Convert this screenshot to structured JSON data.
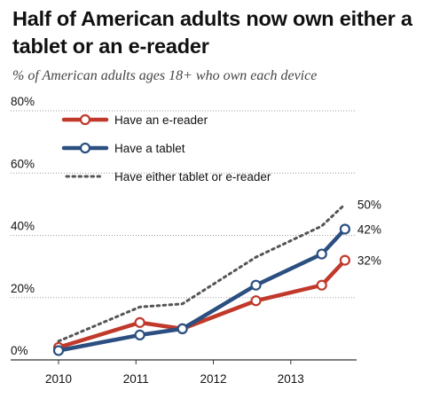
{
  "title": "Half of American adults now own either a tablet or an e-reader",
  "subtitle": "% of American adults ages 18+ who own each device",
  "colors": {
    "ereader": "#c0392b",
    "tablet": "#2a4f80",
    "either": "#555555",
    "grid": "#9a9a9a",
    "axis": "#333333"
  },
  "chart_data": {
    "type": "line",
    "title": "Half of American adults now own either a tablet or an e-reader",
    "subtitle": "% of American adults ages 18+ who own each device",
    "xlabel": "",
    "ylabel": "",
    "xlim": [
      2010.0,
      2013.85
    ],
    "ylim": [
      0,
      80
    ],
    "x_ticks": [
      2010,
      2011,
      2012,
      2013
    ],
    "x_tick_labels": [
      "2010",
      "2011",
      "2012",
      "2013"
    ],
    "y_ticks": [
      0,
      20,
      40,
      60,
      80
    ],
    "y_tick_labels": [
      "0%",
      "20%",
      "40%",
      "60%",
      "80%"
    ],
    "grid": "horizontal dotted",
    "legend_position": "top-left",
    "series": [
      {
        "name": "Have an e-reader",
        "color": "#c0392b",
        "style": "solid",
        "markers": true,
        "x": [
          2010.0,
          2011.05,
          2011.6,
          2012.55,
          2013.4,
          2013.7
        ],
        "values": [
          4,
          12,
          10,
          19,
          24,
          32
        ],
        "end_label": "32%"
      },
      {
        "name": "Have a tablet",
        "color": "#2a4f80",
        "style": "solid",
        "markers": true,
        "x": [
          2010.0,
          2011.05,
          2011.6,
          2012.55,
          2013.4,
          2013.7
        ],
        "values": [
          3,
          8,
          10,
          24,
          34,
          42
        ],
        "end_label": "42%"
      },
      {
        "name": "Have either tablet or e-reader",
        "color": "#555555",
        "style": "dotted",
        "markers": false,
        "x": [
          2010.0,
          2011.05,
          2011.6,
          2012.55,
          2013.4,
          2013.7
        ],
        "values": [
          6,
          17,
          18,
          33,
          43,
          50
        ],
        "end_label": "50%"
      }
    ]
  }
}
